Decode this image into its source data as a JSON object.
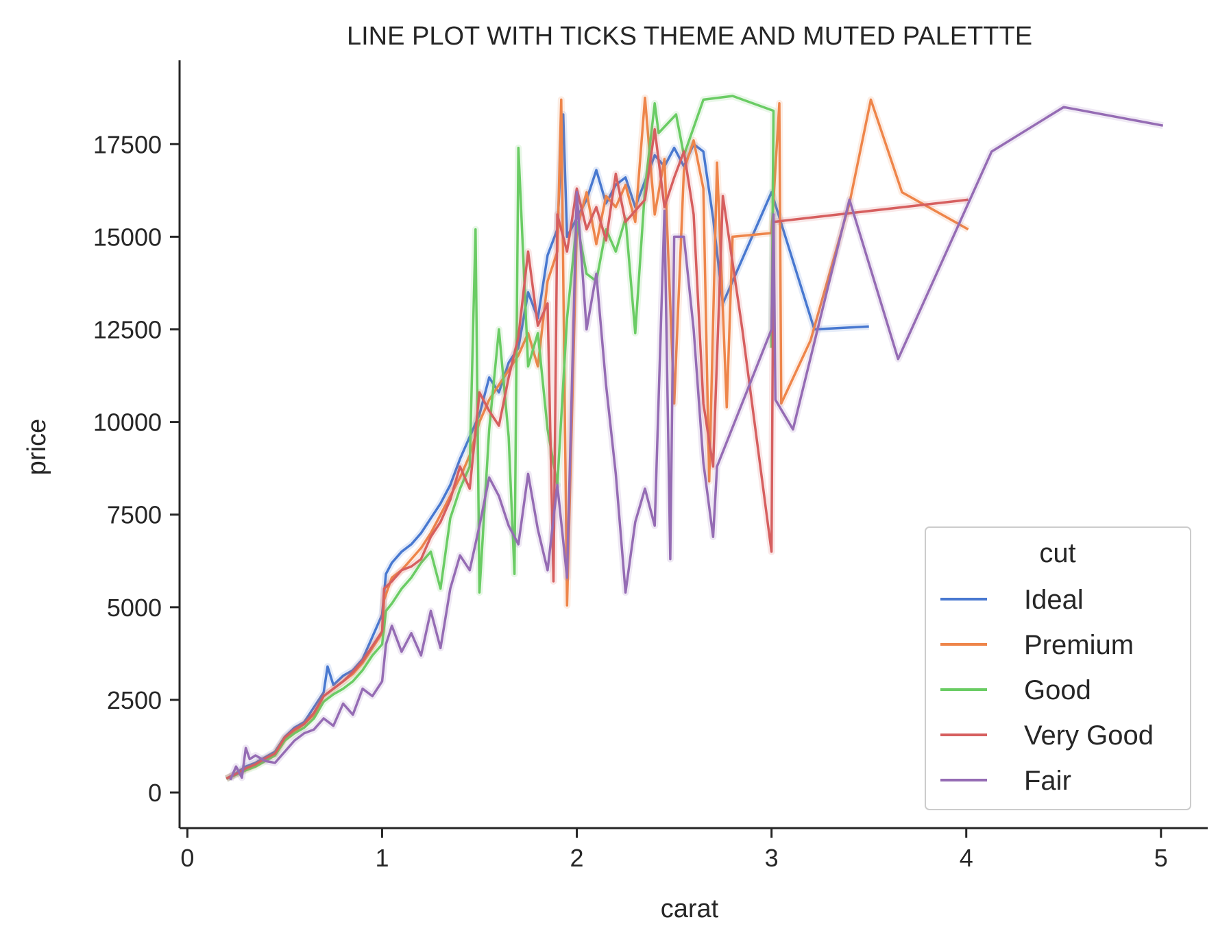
{
  "chart_data": {
    "type": "line",
    "title": "LINE PLOT WITH TICKS THEME AND MUTED PALETTTE",
    "xlabel": "carat",
    "ylabel": "price",
    "xlim": [
      -0.04,
      5.24
    ],
    "ylim": [
      -961,
      19762
    ],
    "x_ticks": [
      0,
      1,
      2,
      3,
      4,
      5
    ],
    "x_tick_labels": [
      "0",
      "1",
      "2",
      "3",
      "4",
      "5"
    ],
    "y_ticks": [
      0,
      2500,
      5000,
      7500,
      10000,
      12500,
      15000,
      17500
    ],
    "y_tick_labels": [
      "0",
      "2500",
      "5000",
      "7500",
      "10000",
      "12500",
      "15000",
      "17500"
    ],
    "grid": false,
    "legend": {
      "title": "cut",
      "position": "lower-right"
    },
    "series": [
      {
        "name": "Ideal",
        "color": "#4878d0",
        "points": [
          [
            0.2,
            367
          ],
          [
            0.25,
            520
          ],
          [
            0.3,
            700
          ],
          [
            0.35,
            800
          ],
          [
            0.4,
            950
          ],
          [
            0.45,
            1100
          ],
          [
            0.5,
            1500
          ],
          [
            0.55,
            1750
          ],
          [
            0.6,
            1900
          ],
          [
            0.65,
            2300
          ],
          [
            0.7,
            2700
          ],
          [
            0.72,
            3400
          ],
          [
            0.75,
            2900
          ],
          [
            0.8,
            3150
          ],
          [
            0.85,
            3300
          ],
          [
            0.9,
            3600
          ],
          [
            0.95,
            4200
          ],
          [
            1.0,
            4800
          ],
          [
            1.02,
            5900
          ],
          [
            1.05,
            6200
          ],
          [
            1.1,
            6500
          ],
          [
            1.15,
            6700
          ],
          [
            1.2,
            7000
          ],
          [
            1.25,
            7400
          ],
          [
            1.3,
            7800
          ],
          [
            1.35,
            8300
          ],
          [
            1.4,
            9000
          ],
          [
            1.45,
            9600
          ],
          [
            1.5,
            10200
          ],
          [
            1.55,
            11200
          ],
          [
            1.6,
            10800
          ],
          [
            1.65,
            11600
          ],
          [
            1.7,
            12000
          ],
          [
            1.75,
            13500
          ],
          [
            1.8,
            12800
          ],
          [
            1.85,
            14500
          ],
          [
            1.9,
            15200
          ],
          [
            1.93,
            18300
          ],
          [
            1.95,
            15000
          ],
          [
            2.0,
            15500
          ],
          [
            2.05,
            16000
          ],
          [
            2.1,
            16800
          ],
          [
            2.15,
            15900
          ],
          [
            2.2,
            16400
          ],
          [
            2.25,
            16600
          ],
          [
            2.3,
            15800
          ],
          [
            2.35,
            16500
          ],
          [
            2.4,
            17200
          ],
          [
            2.45,
            16900
          ],
          [
            2.5,
            17400
          ],
          [
            2.55,
            16900
          ],
          [
            2.6,
            17500
          ],
          [
            2.65,
            17300
          ],
          [
            2.7,
            15500
          ],
          [
            2.75,
            13200
          ],
          [
            3.0,
            16200
          ],
          [
            3.22,
            12500
          ],
          [
            3.5,
            12580
          ]
        ]
      },
      {
        "name": "Premium",
        "color": "#ee854a",
        "points": [
          [
            0.2,
            380
          ],
          [
            0.25,
            500
          ],
          [
            0.3,
            620
          ],
          [
            0.35,
            750
          ],
          [
            0.4,
            900
          ],
          [
            0.45,
            1050
          ],
          [
            0.5,
            1450
          ],
          [
            0.55,
            1650
          ],
          [
            0.6,
            1850
          ],
          [
            0.65,
            2100
          ],
          [
            0.7,
            2600
          ],
          [
            0.75,
            2800
          ],
          [
            0.8,
            3000
          ],
          [
            0.85,
            3200
          ],
          [
            0.9,
            3500
          ],
          [
            0.95,
            3900
          ],
          [
            1.0,
            4300
          ],
          [
            1.01,
            5200
          ],
          [
            1.05,
            5800
          ],
          [
            1.1,
            6000
          ],
          [
            1.15,
            6300
          ],
          [
            1.2,
            6600
          ],
          [
            1.25,
            7000
          ],
          [
            1.3,
            7500
          ],
          [
            1.35,
            8000
          ],
          [
            1.4,
            8500
          ],
          [
            1.45,
            9100
          ],
          [
            1.5,
            10000
          ],
          [
            1.55,
            10600
          ],
          [
            1.6,
            11000
          ],
          [
            1.65,
            11400
          ],
          [
            1.7,
            11800
          ],
          [
            1.75,
            12400
          ],
          [
            1.8,
            11500
          ],
          [
            1.85,
            13800
          ],
          [
            1.9,
            14600
          ],
          [
            1.92,
            18700
          ],
          [
            1.95,
            5050
          ],
          [
            2.0,
            15200
          ],
          [
            2.05,
            16200
          ],
          [
            2.1,
            14800
          ],
          [
            2.15,
            16100
          ],
          [
            2.2,
            15800
          ],
          [
            2.25,
            16400
          ],
          [
            2.3,
            15400
          ],
          [
            2.35,
            18750
          ],
          [
            2.4,
            15600
          ],
          [
            2.45,
            17100
          ],
          [
            2.5,
            10500
          ],
          [
            2.55,
            16800
          ],
          [
            2.6,
            17600
          ],
          [
            2.65,
            16300
          ],
          [
            2.68,
            8400
          ],
          [
            2.72,
            17000
          ],
          [
            2.77,
            10400
          ],
          [
            2.8,
            15000
          ],
          [
            3.0,
            15100
          ],
          [
            3.04,
            18600
          ],
          [
            3.05,
            10500
          ],
          [
            3.2,
            12200
          ],
          [
            3.4,
            15900
          ],
          [
            3.51,
            18700
          ],
          [
            3.67,
            16200
          ],
          [
            4.01,
            15200
          ]
        ]
      },
      {
        "name": "Good",
        "color": "#6acc64",
        "points": [
          [
            0.2,
            370
          ],
          [
            0.25,
            480
          ],
          [
            0.3,
            600
          ],
          [
            0.35,
            700
          ],
          [
            0.4,
            850
          ],
          [
            0.45,
            1000
          ],
          [
            0.5,
            1400
          ],
          [
            0.55,
            1600
          ],
          [
            0.6,
            1750
          ],
          [
            0.65,
            2000
          ],
          [
            0.7,
            2450
          ],
          [
            0.75,
            2650
          ],
          [
            0.8,
            2800
          ],
          [
            0.85,
            3000
          ],
          [
            0.9,
            3300
          ],
          [
            0.95,
            3700
          ],
          [
            1.0,
            4000
          ],
          [
            1.02,
            4900
          ],
          [
            1.05,
            5100
          ],
          [
            1.1,
            5500
          ],
          [
            1.15,
            5800
          ],
          [
            1.2,
            6200
          ],
          [
            1.25,
            6500
          ],
          [
            1.3,
            5500
          ],
          [
            1.35,
            7400
          ],
          [
            1.4,
            8200
          ],
          [
            1.45,
            8800
          ],
          [
            1.48,
            15200
          ],
          [
            1.5,
            5400
          ],
          [
            1.55,
            9800
          ],
          [
            1.6,
            12500
          ],
          [
            1.65,
            9600
          ],
          [
            1.68,
            5900
          ],
          [
            1.7,
            17400
          ],
          [
            1.75,
            11500
          ],
          [
            1.8,
            12400
          ],
          [
            1.85,
            9800
          ],
          [
            1.9,
            8300
          ],
          [
            1.95,
            12800
          ],
          [
            2.0,
            15400
          ],
          [
            2.05,
            14000
          ],
          [
            2.1,
            13800
          ],
          [
            2.15,
            15200
          ],
          [
            2.2,
            14600
          ],
          [
            2.25,
            15500
          ],
          [
            2.3,
            12400
          ],
          [
            2.35,
            16300
          ],
          [
            2.4,
            18600
          ],
          [
            2.42,
            17800
          ],
          [
            2.51,
            18300
          ],
          [
            2.55,
            17200
          ],
          [
            2.65,
            18700
          ],
          [
            2.8,
            18800
          ],
          [
            3.01,
            18400
          ],
          [
            3.0,
            12000
          ]
        ]
      },
      {
        "name": "Very Good",
        "color": "#d65f5f",
        "points": [
          [
            0.2,
            375
          ],
          [
            0.25,
            500
          ],
          [
            0.3,
            650
          ],
          [
            0.35,
            760
          ],
          [
            0.4,
            920
          ],
          [
            0.45,
            1050
          ],
          [
            0.5,
            1480
          ],
          [
            0.55,
            1700
          ],
          [
            0.6,
            1850
          ],
          [
            0.65,
            2150
          ],
          [
            0.7,
            2600
          ],
          [
            0.75,
            2800
          ],
          [
            0.8,
            3000
          ],
          [
            0.85,
            3250
          ],
          [
            0.9,
            3550
          ],
          [
            0.95,
            3950
          ],
          [
            1.0,
            4350
          ],
          [
            1.01,
            5500
          ],
          [
            1.05,
            5700
          ],
          [
            1.1,
            6000
          ],
          [
            1.15,
            6100
          ],
          [
            1.2,
            6300
          ],
          [
            1.25,
            6900
          ],
          [
            1.3,
            7300
          ],
          [
            1.35,
            7900
          ],
          [
            1.4,
            8800
          ],
          [
            1.45,
            8200
          ],
          [
            1.5,
            10800
          ],
          [
            1.55,
            10300
          ],
          [
            1.6,
            9900
          ],
          [
            1.65,
            11200
          ],
          [
            1.7,
            12300
          ],
          [
            1.75,
            14600
          ],
          [
            1.8,
            12600
          ],
          [
            1.85,
            13200
          ],
          [
            1.88,
            5700
          ],
          [
            1.9,
            15600
          ],
          [
            1.95,
            14600
          ],
          [
            2.0,
            16300
          ],
          [
            2.05,
            15200
          ],
          [
            2.1,
            15800
          ],
          [
            2.15,
            14900
          ],
          [
            2.2,
            16700
          ],
          [
            2.25,
            15400
          ],
          [
            2.3,
            15700
          ],
          [
            2.35,
            16000
          ],
          [
            2.4,
            17900
          ],
          [
            2.45,
            15800
          ],
          [
            2.5,
            16600
          ],
          [
            2.55,
            17300
          ],
          [
            2.6,
            15600
          ],
          [
            2.65,
            10500
          ],
          [
            2.7,
            8800
          ],
          [
            2.75,
            16100
          ],
          [
            2.85,
            12500
          ],
          [
            3.0,
            6500
          ],
          [
            3.01,
            15400
          ],
          [
            4.01,
            16000
          ]
        ]
      },
      {
        "name": "Fair",
        "color": "#956cb4",
        "points": [
          [
            0.22,
            337
          ],
          [
            0.25,
            700
          ],
          [
            0.28,
            400
          ],
          [
            0.3,
            1200
          ],
          [
            0.32,
            900
          ],
          [
            0.35,
            1000
          ],
          [
            0.4,
            850
          ],
          [
            0.45,
            800
          ],
          [
            0.5,
            1100
          ],
          [
            0.55,
            1400
          ],
          [
            0.6,
            1600
          ],
          [
            0.65,
            1700
          ],
          [
            0.7,
            2000
          ],
          [
            0.75,
            1800
          ],
          [
            0.8,
            2400
          ],
          [
            0.85,
            2100
          ],
          [
            0.9,
            2800
          ],
          [
            0.95,
            2600
          ],
          [
            1.0,
            3000
          ],
          [
            1.02,
            4000
          ],
          [
            1.05,
            4500
          ],
          [
            1.1,
            3800
          ],
          [
            1.15,
            4300
          ],
          [
            1.2,
            3700
          ],
          [
            1.25,
            4900
          ],
          [
            1.3,
            3900
          ],
          [
            1.35,
            5500
          ],
          [
            1.4,
            6400
          ],
          [
            1.45,
            6000
          ],
          [
            1.5,
            7200
          ],
          [
            1.55,
            8500
          ],
          [
            1.6,
            8000
          ],
          [
            1.65,
            7200
          ],
          [
            1.7,
            6700
          ],
          [
            1.75,
            8600
          ],
          [
            1.8,
            7100
          ],
          [
            1.85,
            6000
          ],
          [
            1.9,
            8300
          ],
          [
            1.95,
            5800
          ],
          [
            2.0,
            16200
          ],
          [
            2.05,
            12500
          ],
          [
            2.1,
            14000
          ],
          [
            2.15,
            11000
          ],
          [
            2.2,
            8600
          ],
          [
            2.25,
            5400
          ],
          [
            2.3,
            7300
          ],
          [
            2.35,
            8200
          ],
          [
            2.4,
            7200
          ],
          [
            2.45,
            15700
          ],
          [
            2.48,
            6300
          ],
          [
            2.5,
            15000
          ],
          [
            2.55,
            15000
          ],
          [
            2.6,
            12500
          ],
          [
            2.65,
            8900
          ],
          [
            2.7,
            6900
          ],
          [
            2.72,
            8800
          ],
          [
            3.0,
            12500
          ],
          [
            3.01,
            15600
          ],
          [
            3.02,
            10600
          ],
          [
            3.11,
            9800
          ],
          [
            3.4,
            16000
          ],
          [
            3.65,
            11700
          ],
          [
            4.13,
            17300
          ],
          [
            4.5,
            18500
          ],
          [
            5.01,
            18000
          ]
        ]
      }
    ]
  }
}
